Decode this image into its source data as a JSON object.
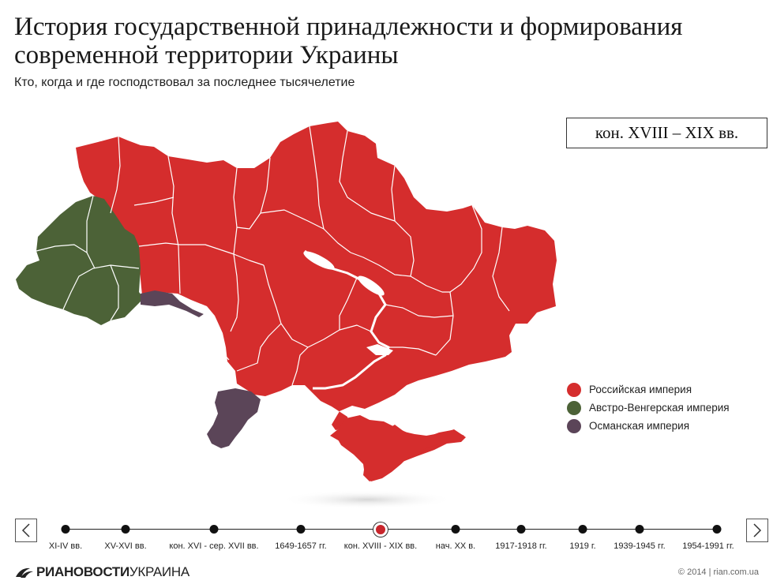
{
  "header": {
    "title": "История государственной принадлежности и формирования современной территории Украины",
    "subtitle": "Кто, когда и где господствовал за последнее тысячелетие"
  },
  "period": "кон. XVIII – XIX вв.",
  "colors": {
    "russian": "#d52d2d",
    "austro": "#4c6237",
    "ottoman": "#5b4558"
  },
  "legend": [
    {
      "label": "Российская империя",
      "color": "#d52d2d"
    },
    {
      "label": "Австро-Венгерская империя",
      "color": "#4c6237"
    },
    {
      "label": "Османская империя",
      "color": "#5b4558"
    }
  ],
  "timeline": {
    "items": [
      {
        "label": "XI-IV вв."
      },
      {
        "label": "XV-XVI вв."
      },
      {
        "label": "кон. XVI - сер. XVII вв."
      },
      {
        "label": "1649-1657 гг."
      },
      {
        "label": "кон. XVIII - XIX вв.",
        "active": true
      },
      {
        "label": "нач. XX в."
      },
      {
        "label": "1917-1918 гг."
      },
      {
        "label": "1919 г."
      },
      {
        "label": "1939-1945 гг."
      },
      {
        "label": "1954-1991 гг."
      }
    ],
    "prev_icon": "chevron-left-icon",
    "next_icon": "chevron-right-icon"
  },
  "footer": {
    "logo_ria": "РИА",
    "logo_novosti": "НОВОСТИ",
    "logo_ukraina": "УКРАИНА",
    "copyright": "© 2014 | rian.com.ua"
  }
}
